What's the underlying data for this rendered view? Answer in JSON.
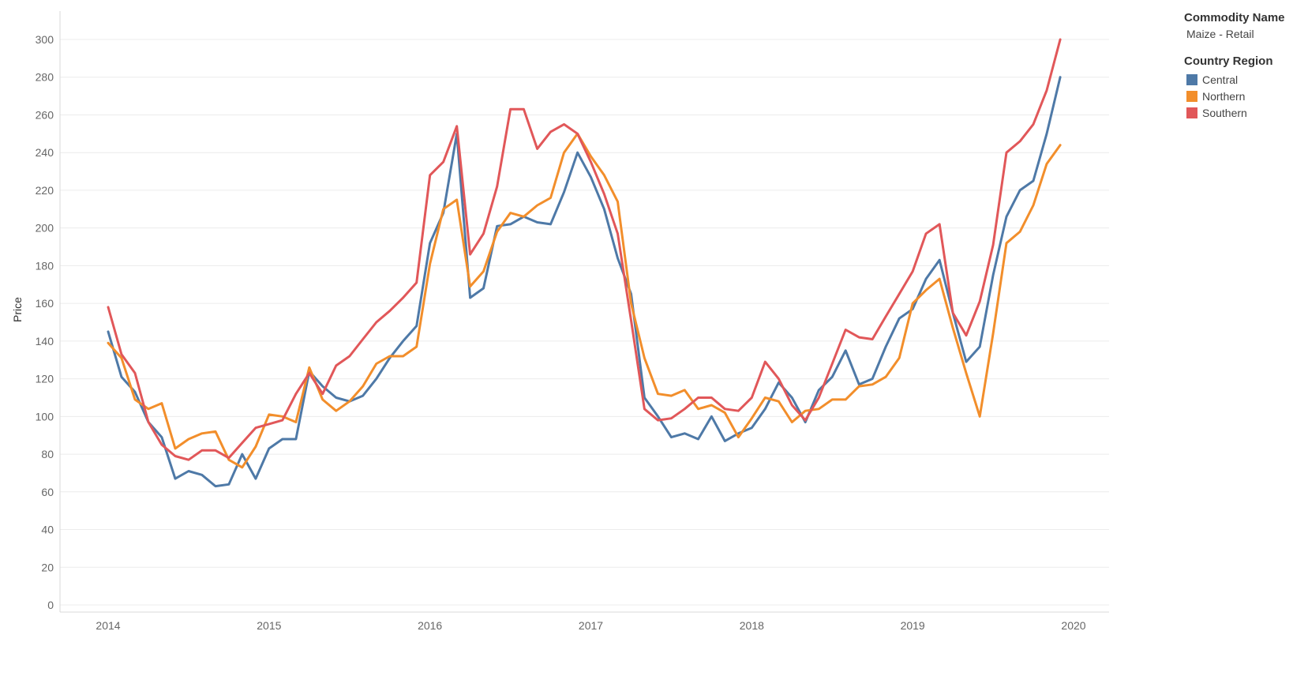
{
  "legend": {
    "commodity_heading": "Commodity Name",
    "commodity_value": "Maize - Retail",
    "region_heading": "Country Region"
  },
  "chart_data": {
    "type": "line",
    "xlabel": "",
    "ylabel": "Price",
    "ylim": [
      0,
      300
    ],
    "yticks": [
      0,
      20,
      40,
      60,
      80,
      100,
      120,
      140,
      160,
      180,
      200,
      220,
      240,
      260,
      280,
      300
    ],
    "xticks": [
      2014,
      2015,
      2016,
      2017,
      2018,
      2019,
      2020
    ],
    "xlim": [
      2013.7,
      2020.2
    ],
    "grid": true,
    "legend_position": "top-right",
    "x": [
      2014.0,
      2014.083,
      2014.167,
      2014.25,
      2014.333,
      2014.417,
      2014.5,
      2014.583,
      2014.667,
      2014.75,
      2014.833,
      2014.917,
      2015.0,
      2015.083,
      2015.167,
      2015.25,
      2015.333,
      2015.417,
      2015.5,
      2015.583,
      2015.667,
      2015.75,
      2015.833,
      2015.917,
      2016.0,
      2016.083,
      2016.167,
      2016.25,
      2016.333,
      2016.417,
      2016.5,
      2016.583,
      2016.667,
      2016.75,
      2016.833,
      2016.917,
      2017.0,
      2017.083,
      2017.167,
      2017.25,
      2017.333,
      2017.417,
      2017.5,
      2017.583,
      2017.667,
      2017.75,
      2017.833,
      2017.917,
      2018.0,
      2018.083,
      2018.167,
      2018.25,
      2018.333,
      2018.417,
      2018.5,
      2018.583,
      2018.667,
      2018.75,
      2018.833,
      2018.917,
      2019.0,
      2019.083,
      2019.167,
      2019.25,
      2019.333,
      2019.417,
      2019.5,
      2019.583,
      2019.667,
      2019.75,
      2019.833,
      2019.917
    ],
    "series": [
      {
        "name": "Central",
        "color": "#4e79a7",
        "values": [
          145,
          121,
          113,
          97,
          89,
          67,
          71,
          69,
          63,
          64,
          80,
          67,
          83,
          88,
          88,
          124,
          116,
          110,
          108,
          111,
          120,
          131,
          140,
          148,
          192,
          208,
          250,
          163,
          168,
          201,
          202,
          206,
          203,
          202,
          219,
          240,
          227,
          210,
          184,
          165,
          110,
          100,
          89,
          91,
          88,
          100,
          87,
          91,
          94,
          104,
          118,
          110,
          97,
          114,
          121,
          135,
          117,
          120,
          137,
          152,
          157,
          173,
          183,
          155,
          129,
          137,
          175,
          206,
          220,
          225,
          250,
          280
        ]
      },
      {
        "name": "Northern",
        "color": "#f28e2b",
        "values": [
          139,
          131,
          109,
          104,
          107,
          83,
          88,
          91,
          92,
          77,
          73,
          84,
          101,
          100,
          97,
          126,
          109,
          103,
          108,
          116,
          128,
          132,
          132,
          137,
          181,
          210,
          215,
          169,
          177,
          198,
          208,
          206,
          212,
          216,
          240,
          250,
          238,
          228,
          214,
          160,
          131,
          112,
          111,
          114,
          104,
          106,
          102,
          89,
          99,
          110,
          108,
          97,
          103,
          104,
          109,
          109,
          116,
          117,
          121,
          131,
          160,
          167,
          173,
          147,
          123,
          100,
          144,
          192,
          198,
          212,
          234,
          244
        ]
      },
      {
        "name": "Southern",
        "color": "#e15759",
        "values": [
          158,
          133,
          123,
          97,
          85,
          79,
          77,
          82,
          82,
          78,
          86,
          94,
          96,
          98,
          112,
          123,
          112,
          127,
          132,
          141,
          150,
          156,
          163,
          171,
          228,
          235,
          254,
          186,
          197,
          222,
          263,
          263,
          242,
          251,
          255,
          250,
          235,
          218,
          197,
          151,
          104,
          98,
          99,
          104,
          110,
          110,
          104,
          103,
          110,
          129,
          120,
          106,
          98,
          110,
          128,
          146,
          142,
          141,
          153,
          165,
          177,
          197,
          202,
          155,
          143,
          161,
          191,
          240,
          246,
          255,
          273,
          300
        ]
      }
    ]
  }
}
